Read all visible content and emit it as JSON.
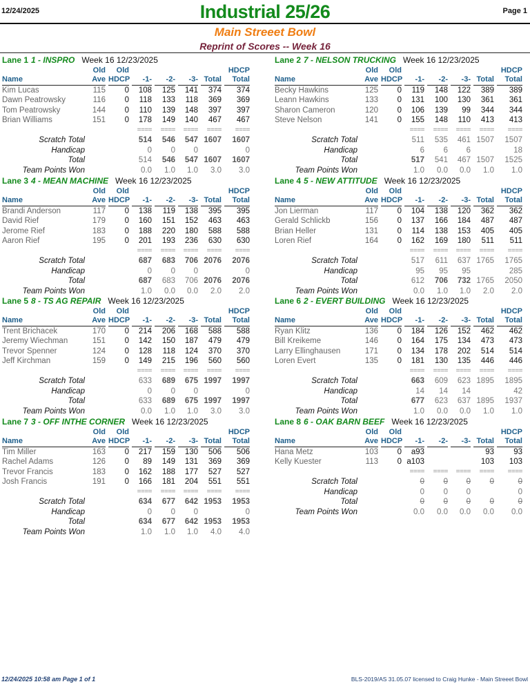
{
  "header": {
    "date": "12/24/2025",
    "page": "Page 1",
    "title": "Industrial 25/26",
    "bowl": "Main Streeet Bowl",
    "subtitle": "Reprint of Scores -- Week 16"
  },
  "columns": {
    "old_top": "Old",
    "hdcp_top": "HDCP",
    "name": "Name",
    "ave": "Ave",
    "hdcp": "HDCP",
    "g1": "-1-",
    "g2": "-2-",
    "g3": "-3-",
    "total": "Total",
    "hdcp_total": "Total",
    "separator": "===="
  },
  "colors": {
    "title": "#138a1c",
    "bowl": "#ef7d12",
    "subtitle": "#76233b",
    "column_header": "#1f5f8b"
  },
  "lanes": [
    {
      "lane": "Lane 1",
      "team": "1 - INSPRO",
      "week": "Week 16  12/23/2025",
      "players": [
        {
          "name": "Kim Lucas",
          "ave": "115",
          "hdcp": "0",
          "g1": "108",
          "g2": "125",
          "g3": "141",
          "total": "374",
          "hdcp_total": "374"
        },
        {
          "name": "Dawn Peatrowsky",
          "ave": "116",
          "hdcp": "0",
          "g1": "118",
          "g2": "133",
          "g3": "118",
          "total": "369",
          "hdcp_total": "369"
        },
        {
          "name": "Tom Peatrowsky",
          "ave": "144",
          "hdcp": "0",
          "g1": "110",
          "g2": "139",
          "g3": "148",
          "total": "397",
          "hdcp_total": "397"
        },
        {
          "name": "Brian Williams",
          "ave": "151",
          "hdcp": "0",
          "g1": "178",
          "g2": "149",
          "g3": "140",
          "total": "467",
          "hdcp_total": "467"
        }
      ],
      "totals": [
        {
          "label": "Scratch Total",
          "values": [
            "514",
            "546",
            "547",
            "1607",
            "1607"
          ],
          "bold": [
            true,
            true,
            true,
            true,
            true
          ]
        },
        {
          "label": "Handicap",
          "values": [
            "0",
            "0",
            "0",
            "",
            "0"
          ],
          "bold": [
            false,
            false,
            false,
            false,
            false
          ]
        },
        {
          "label": "Total",
          "values": [
            "514",
            "546",
            "547",
            "1607",
            "1607"
          ],
          "bold": [
            false,
            true,
            true,
            true,
            true
          ]
        },
        {
          "label": "Team Points Won",
          "values": [
            "0.0",
            "1.0",
            "1.0",
            "3.0",
            "3.0"
          ],
          "bold": [
            false,
            false,
            false,
            false,
            false
          ]
        }
      ]
    },
    {
      "lane": "Lane 2",
      "team": "7 - NELSON TRUCKING",
      "week": "Week 16  12/23/2025",
      "players": [
        {
          "name": "Becky Hawkins",
          "ave": "125",
          "hdcp": "0",
          "g1": "119",
          "g2": "148",
          "g3": "122",
          "total": "389",
          "hdcp_total": "389"
        },
        {
          "name": "Leann Hawkins",
          "ave": "133",
          "hdcp": "0",
          "g1": "131",
          "g2": "100",
          "g3": "130",
          "total": "361",
          "hdcp_total": "361"
        },
        {
          "name": "Sharon Cameron",
          "ave": "120",
          "hdcp": "0",
          "g1": "106",
          "g2": "139",
          "g3": "99",
          "total": "344",
          "hdcp_total": "344"
        },
        {
          "name": "Steve Nelson",
          "ave": "141",
          "hdcp": "0",
          "g1": "155",
          "g2": "148",
          "g3": "110",
          "total": "413",
          "hdcp_total": "413"
        }
      ],
      "totals": [
        {
          "label": "Scratch Total",
          "values": [
            "511",
            "535",
            "461",
            "1507",
            "1507"
          ],
          "bold": [
            false,
            false,
            false,
            false,
            false
          ]
        },
        {
          "label": "Handicap",
          "values": [
            "6",
            "6",
            "6",
            "",
            "18"
          ],
          "bold": [
            false,
            false,
            false,
            false,
            false
          ]
        },
        {
          "label": "Total",
          "values": [
            "517",
            "541",
            "467",
            "1507",
            "1525"
          ],
          "bold": [
            true,
            false,
            false,
            false,
            false
          ]
        },
        {
          "label": "Team Points Won",
          "values": [
            "1.0",
            "0.0",
            "0.0",
            "1.0",
            "1.0"
          ],
          "bold": [
            false,
            false,
            false,
            false,
            false
          ]
        }
      ]
    },
    {
      "lane": "Lane 3",
      "team": "4 - MEAN MACHINE",
      "week": "Week 16  12/23/2025",
      "players": [
        {
          "name": "Brandi Anderson",
          "ave": "117",
          "hdcp": "0",
          "g1": "138",
          "g2": "119",
          "g3": "138",
          "total": "395",
          "hdcp_total": "395"
        },
        {
          "name": "David Rief",
          "ave": "179",
          "hdcp": "0",
          "g1": "160",
          "g2": "151",
          "g3": "152",
          "total": "463",
          "hdcp_total": "463"
        },
        {
          "name": "Jerome Rief",
          "ave": "183",
          "hdcp": "0",
          "g1": "188",
          "g2": "220",
          "g3": "180",
          "total": "588",
          "hdcp_total": "588"
        },
        {
          "name": "Aaron Rief",
          "ave": "195",
          "hdcp": "0",
          "g1": "201",
          "g2": "193",
          "g3": "236",
          "total": "630",
          "hdcp_total": "630"
        }
      ],
      "totals": [
        {
          "label": "Scratch Total",
          "values": [
            "687",
            "683",
            "706",
            "2076",
            "2076"
          ],
          "bold": [
            true,
            true,
            true,
            true,
            true
          ]
        },
        {
          "label": "Handicap",
          "values": [
            "0",
            "0",
            "0",
            "",
            "0"
          ],
          "bold": [
            false,
            false,
            false,
            false,
            false
          ]
        },
        {
          "label": "Total",
          "values": [
            "687",
            "683",
            "706",
            "2076",
            "2076"
          ],
          "bold": [
            true,
            false,
            false,
            true,
            true
          ]
        },
        {
          "label": "Team Points Won",
          "values": [
            "1.0",
            "0.0",
            "0.0",
            "2.0",
            "2.0"
          ],
          "bold": [
            false,
            false,
            false,
            false,
            false
          ]
        }
      ]
    },
    {
      "lane": "Lane 4",
      "team": "5 - NEW ATTITUDE",
      "week": "Week 16  12/23/2025",
      "players": [
        {
          "name": "Jon Lierman",
          "ave": "117",
          "hdcp": "0",
          "g1": "104",
          "g2": "138",
          "g3": "120",
          "total": "362",
          "hdcp_total": "362"
        },
        {
          "name": "Gerald Schlickb",
          "ave": "156",
          "hdcp": "0",
          "g1": "137",
          "g2": "166",
          "g3": "184",
          "total": "487",
          "hdcp_total": "487"
        },
        {
          "name": "Brian Heller",
          "ave": "131",
          "hdcp": "0",
          "g1": "114",
          "g2": "138",
          "g3": "153",
          "total": "405",
          "hdcp_total": "405"
        },
        {
          "name": "Loren Rief",
          "ave": "164",
          "hdcp": "0",
          "g1": "162",
          "g2": "169",
          "g3": "180",
          "total": "511",
          "hdcp_total": "511"
        }
      ],
      "totals": [
        {
          "label": "Scratch Total",
          "values": [
            "517",
            "611",
            "637",
            "1765",
            "1765"
          ],
          "bold": [
            false,
            false,
            false,
            false,
            false
          ]
        },
        {
          "label": "Handicap",
          "values": [
            "95",
            "95",
            "95",
            "",
            "285"
          ],
          "bold": [
            false,
            false,
            false,
            false,
            false
          ]
        },
        {
          "label": "Total",
          "values": [
            "612",
            "706",
            "732",
            "1765",
            "2050"
          ],
          "bold": [
            false,
            true,
            true,
            false,
            false
          ]
        },
        {
          "label": "Team Points Won",
          "values": [
            "0.0",
            "1.0",
            "1.0",
            "2.0",
            "2.0"
          ],
          "bold": [
            false,
            false,
            false,
            false,
            false
          ]
        }
      ]
    },
    {
      "lane": "Lane 5",
      "team": "8 - TS AG REPAIR",
      "week": "Week 16  12/23/2025",
      "players": [
        {
          "name": "Trent Brichacek",
          "ave": "170",
          "hdcp": "0",
          "g1": "214",
          "g2": "206",
          "g3": "168",
          "total": "588",
          "hdcp_total": "588"
        },
        {
          "name": "Jeremy Wiechman",
          "ave": "151",
          "hdcp": "0",
          "g1": "142",
          "g2": "150",
          "g3": "187",
          "total": "479",
          "hdcp_total": "479"
        },
        {
          "name": "Trevor Spenner",
          "ave": "124",
          "hdcp": "0",
          "g1": "128",
          "g2": "118",
          "g3": "124",
          "total": "370",
          "hdcp_total": "370"
        },
        {
          "name": "Jeff Kirchman",
          "ave": "159",
          "hdcp": "0",
          "g1": "149",
          "g2": "215",
          "g3": "196",
          "total": "560",
          "hdcp_total": "560"
        }
      ],
      "totals": [
        {
          "label": "Scratch Total",
          "values": [
            "633",
            "689",
            "675",
            "1997",
            "1997"
          ],
          "bold": [
            false,
            true,
            true,
            true,
            true
          ]
        },
        {
          "label": "Handicap",
          "values": [
            "0",
            "0",
            "0",
            "",
            "0"
          ],
          "bold": [
            false,
            false,
            false,
            false,
            false
          ]
        },
        {
          "label": "Total",
          "values": [
            "633",
            "689",
            "675",
            "1997",
            "1997"
          ],
          "bold": [
            false,
            true,
            true,
            true,
            true
          ]
        },
        {
          "label": "Team Points Won",
          "values": [
            "0.0",
            "1.0",
            "1.0",
            "3.0",
            "3.0"
          ],
          "bold": [
            false,
            false,
            false,
            false,
            false
          ]
        }
      ]
    },
    {
      "lane": "Lane 6",
      "team": "2 - EVERT BUILDING",
      "week": "Week 16  12/23/2025",
      "players": [
        {
          "name": "Ryan Klitz",
          "ave": "136",
          "hdcp": "0",
          "g1": "184",
          "g2": "126",
          "g3": "152",
          "total": "462",
          "hdcp_total": "462"
        },
        {
          "name": "Bill Kreikeme",
          "ave": "146",
          "hdcp": "0",
          "g1": "164",
          "g2": "175",
          "g3": "134",
          "total": "473",
          "hdcp_total": "473"
        },
        {
          "name": "Larry Ellinghausen",
          "ave": "171",
          "hdcp": "0",
          "g1": "134",
          "g2": "178",
          "g3": "202",
          "total": "514",
          "hdcp_total": "514"
        },
        {
          "name": "Loren Evert",
          "ave": "135",
          "hdcp": "0",
          "g1": "181",
          "g2": "130",
          "g3": "135",
          "total": "446",
          "hdcp_total": "446"
        }
      ],
      "totals": [
        {
          "label": "Scratch Total",
          "values": [
            "663",
            "609",
            "623",
            "1895",
            "1895"
          ],
          "bold": [
            true,
            false,
            false,
            false,
            false
          ]
        },
        {
          "label": "Handicap",
          "values": [
            "14",
            "14",
            "14",
            "",
            "42"
          ],
          "bold": [
            false,
            false,
            false,
            false,
            false
          ]
        },
        {
          "label": "Total",
          "values": [
            "677",
            "623",
            "637",
            "1895",
            "1937"
          ],
          "bold": [
            true,
            false,
            false,
            false,
            false
          ]
        },
        {
          "label": "Team Points Won",
          "values": [
            "1.0",
            "0.0",
            "0.0",
            "1.0",
            "1.0"
          ],
          "bold": [
            false,
            false,
            false,
            false,
            false
          ]
        }
      ]
    },
    {
      "lane": "Lane 7",
      "team": "3 - OFF INTHE CORNER",
      "week": "Week 16  12/23/2025",
      "players": [
        {
          "name": "Tim Miller",
          "ave": "163",
          "hdcp": "0",
          "g1": "217",
          "g2": "159",
          "g3": "130",
          "total": "506",
          "hdcp_total": "506"
        },
        {
          "name": "Rachel Adams",
          "ave": "126",
          "hdcp": "0",
          "g1": "89",
          "g2": "149",
          "g3": "131",
          "total": "369",
          "hdcp_total": "369"
        },
        {
          "name": "Trevor Francis",
          "ave": "183",
          "hdcp": "0",
          "g1": "162",
          "g2": "188",
          "g3": "177",
          "total": "527",
          "hdcp_total": "527"
        },
        {
          "name": "Josh Francis",
          "ave": "191",
          "hdcp": "0",
          "g1": "166",
          "g2": "181",
          "g3": "204",
          "total": "551",
          "hdcp_total": "551"
        }
      ],
      "totals": [
        {
          "label": "Scratch Total",
          "values": [
            "634",
            "677",
            "642",
            "1953",
            "1953"
          ],
          "bold": [
            true,
            true,
            true,
            true,
            true
          ]
        },
        {
          "label": "Handicap",
          "values": [
            "0",
            "0",
            "0",
            "",
            "0"
          ],
          "bold": [
            false,
            false,
            false,
            false,
            false
          ]
        },
        {
          "label": "Total",
          "values": [
            "634",
            "677",
            "642",
            "1953",
            "1953"
          ],
          "bold": [
            true,
            true,
            true,
            true,
            true
          ]
        },
        {
          "label": "Team Points Won",
          "values": [
            "1.0",
            "1.0",
            "1.0",
            "4.0",
            "4.0"
          ],
          "bold": [
            false,
            false,
            false,
            false,
            false
          ]
        }
      ]
    },
    {
      "lane": "Lane 8",
      "team": "6 - OAK BARN BEEF",
      "week": "Week 16  12/23/2025",
      "players": [
        {
          "name": "Hana Metz",
          "ave": "103",
          "hdcp": "0",
          "g1": "a93",
          "g2": "",
          "g3": "",
          "total": "93",
          "hdcp_total": "93"
        },
        {
          "name": "Kelly Kuester",
          "ave": "113",
          "hdcp": "0",
          "g1": "a103",
          "g2": "",
          "g3": "",
          "total": "103",
          "hdcp_total": "103"
        }
      ],
      "totals": [
        {
          "label": "Scratch Total",
          "values": [
            "0",
            "0",
            "0",
            "0",
            "0"
          ],
          "bold": [
            false,
            false,
            false,
            false,
            false
          ],
          "struck": true
        },
        {
          "label": "Handicap",
          "values": [
            "0",
            "0",
            "0",
            "",
            "0"
          ],
          "bold": [
            false,
            false,
            false,
            false,
            false
          ]
        },
        {
          "label": "Total",
          "values": [
            "0",
            "0",
            "0",
            "0",
            "0"
          ],
          "bold": [
            false,
            false,
            false,
            false,
            false
          ],
          "struck": true
        },
        {
          "label": "Team Points Won",
          "values": [
            "0.0",
            "0.0",
            "0.0",
            "0.0",
            "0.0"
          ],
          "bold": [
            false,
            false,
            false,
            false,
            false
          ]
        }
      ]
    }
  ],
  "footer": {
    "printed": "12/24/2025  10:58 am  Page 1 of 1",
    "license": "BLS-2019/AS 31.05.07 licensed to Craig Hunke - Main Streeet Bowl"
  }
}
